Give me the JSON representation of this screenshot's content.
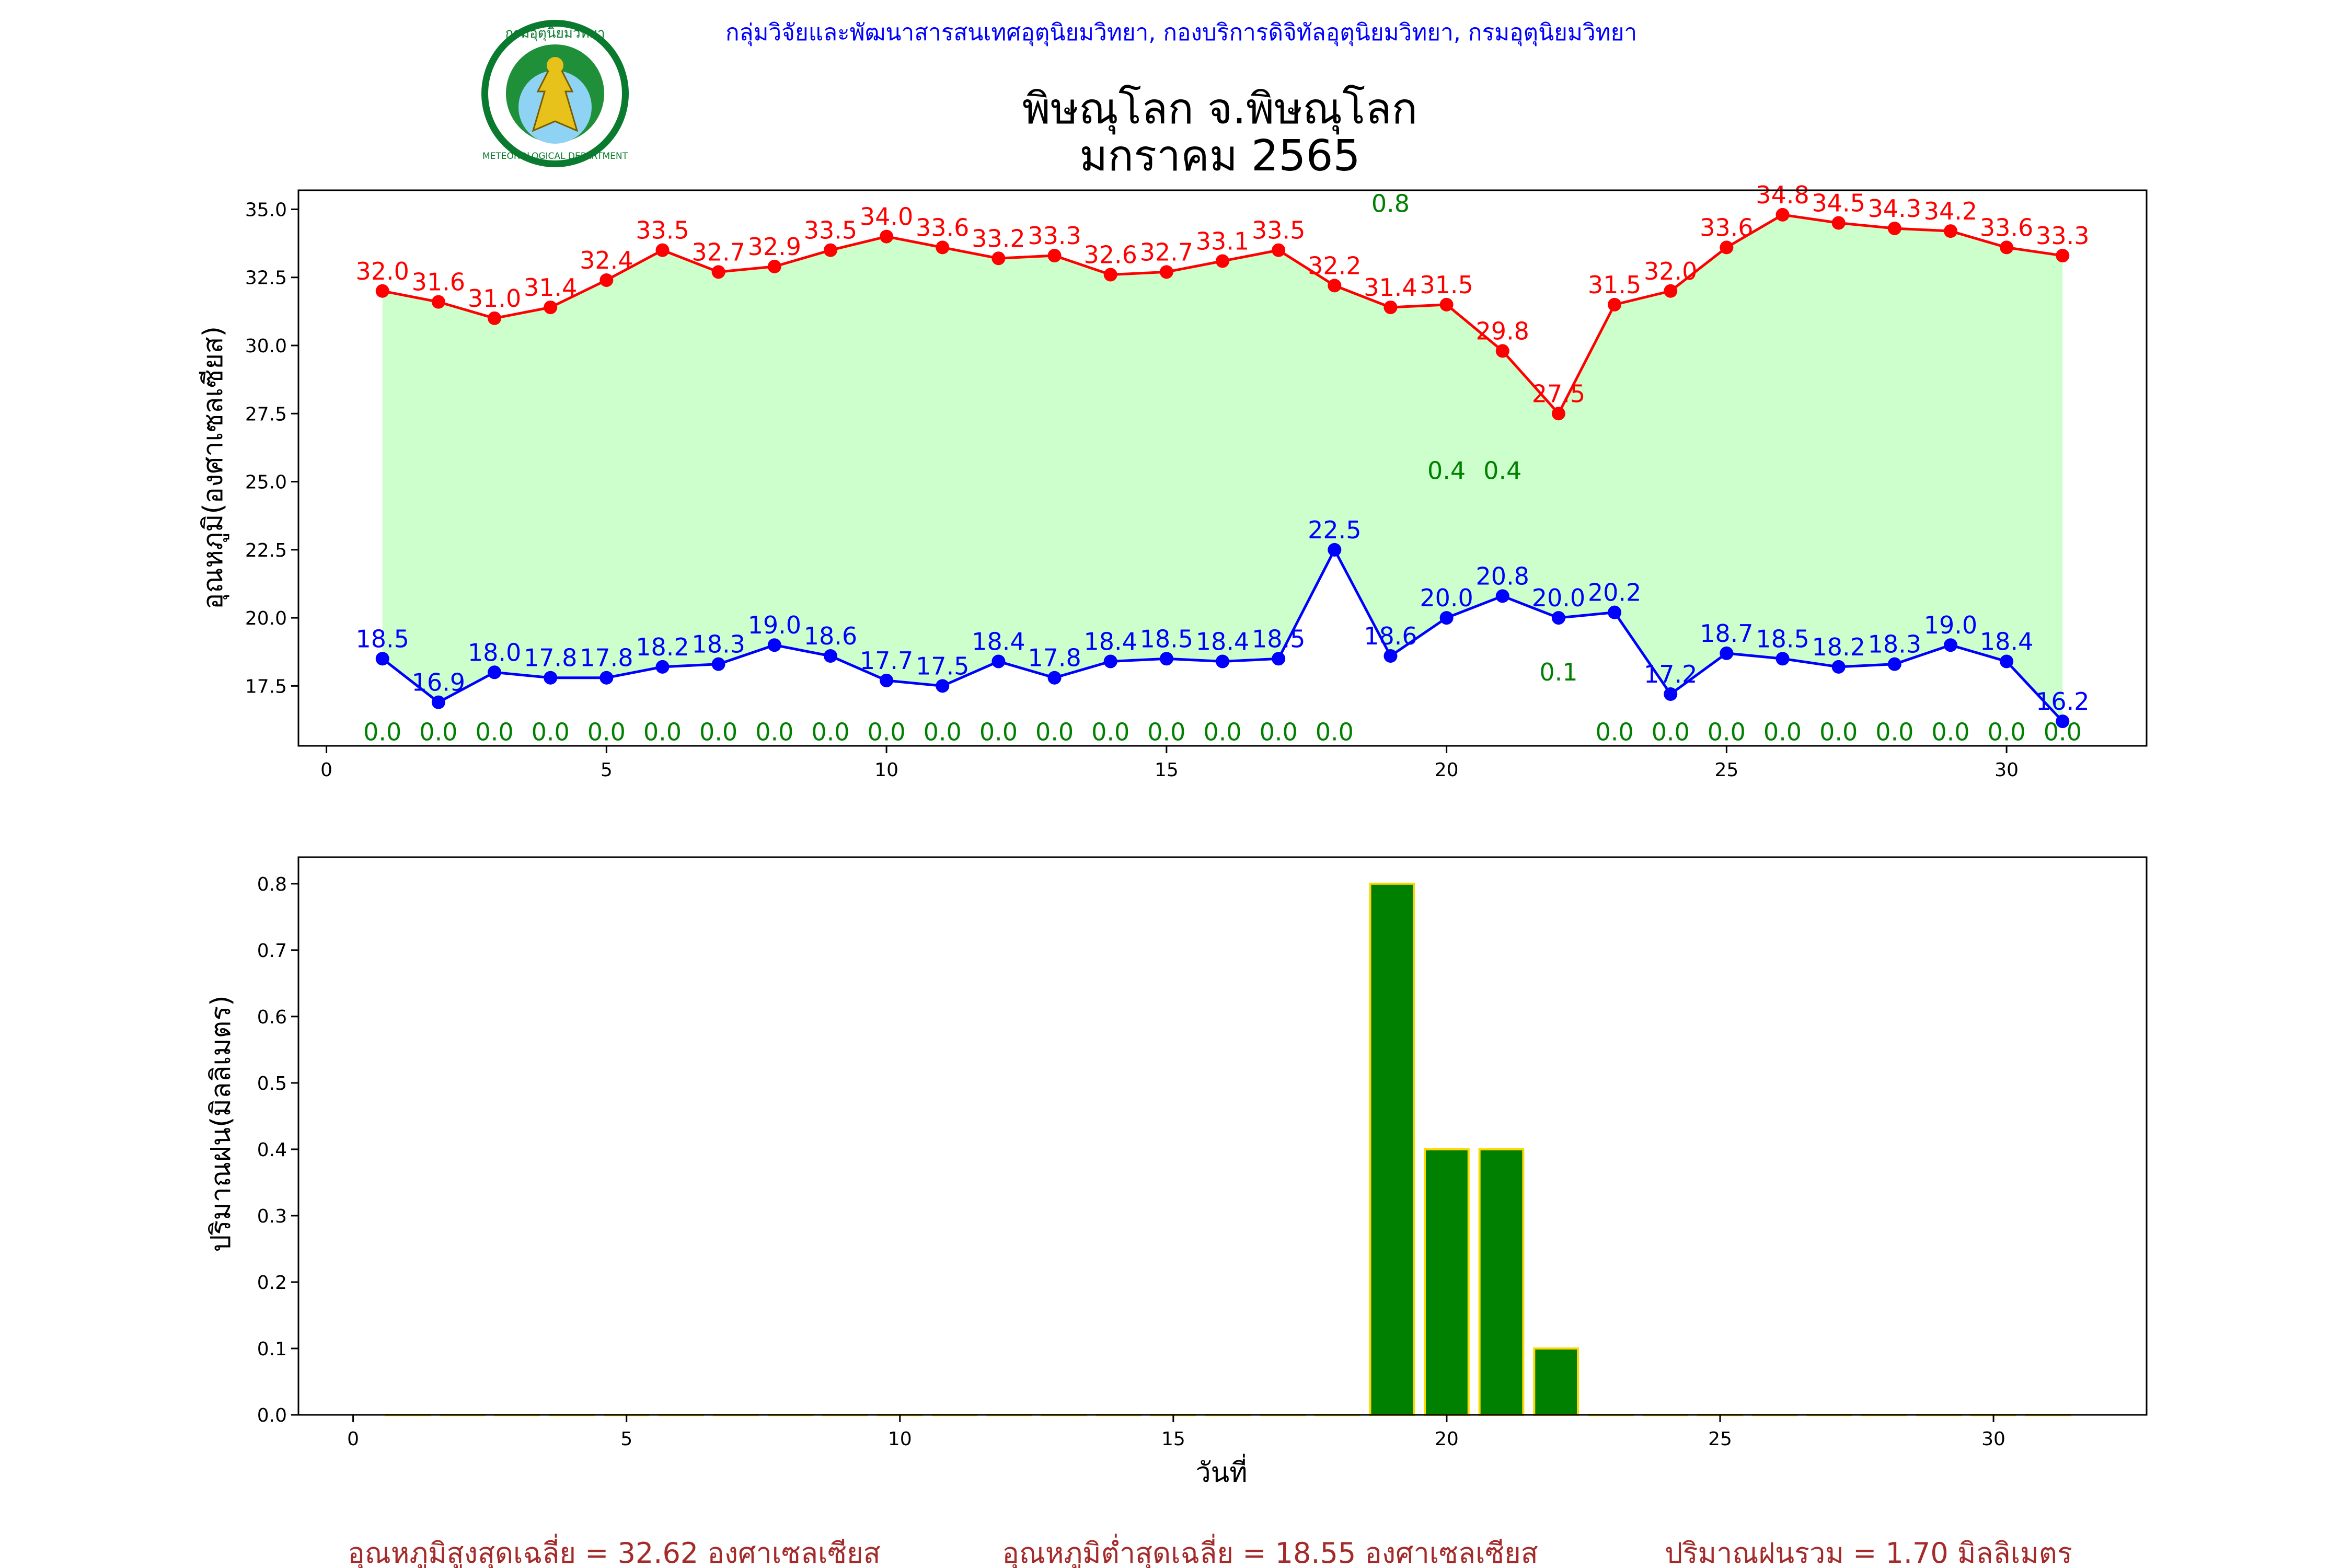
{
  "header": {
    "org_text": "กลุ่มวิจัยและพัฒนาสารสนเทศอุตุนิยมวิทยา, กองบริการดิจิทัลอุตุนิยมวิทยา, กรมอุตุนิยมวิทยา",
    "title_line1": "พิษณุโลก จ.พิษณุโลก",
    "title_line2": "มกราคม 2565",
    "logo_text_top": "กรมอุตุนิยมวิทยา",
    "logo_text_bottom": "METEOROLOGICAL DEPARTMENT"
  },
  "colors": {
    "header_text": "#0000ff",
    "max_line": "#ff0000",
    "min_line": "#0000ff",
    "rain_label": "#008000",
    "fill": "#ccffcc",
    "bar_fill": "#008000",
    "bar_edge": "#ffd700",
    "footer_text": "#a52a2a"
  },
  "chart_data": [
    {
      "type": "line",
      "xlabel": "",
      "ylabel": "อุณหภูมิ(องศาเซลเซียส)",
      "xlim": [
        -0.5,
        32.5
      ],
      "ylim": [
        15.3,
        35.7
      ],
      "xticks": [
        0,
        5,
        10,
        15,
        20,
        25,
        30
      ],
      "yticks": [
        17.5,
        20.0,
        22.5,
        25.0,
        27.5,
        30.0,
        32.5,
        35.0
      ],
      "x": [
        1,
        2,
        3,
        4,
        5,
        6,
        7,
        8,
        9,
        10,
        11,
        12,
        13,
        14,
        15,
        16,
        17,
        18,
        19,
        20,
        21,
        22,
        23,
        24,
        25,
        26,
        27,
        28,
        29,
        30,
        31
      ],
      "max_temp": [
        32.0,
        31.6,
        31.0,
        31.4,
        32.4,
        33.5,
        32.7,
        32.9,
        33.5,
        34.0,
        33.6,
        33.2,
        33.3,
        32.6,
        32.7,
        33.1,
        33.5,
        32.2,
        31.4,
        31.5,
        29.8,
        27.5,
        31.5,
        32.0,
        33.6,
        34.8,
        34.5,
        34.3,
        34.2,
        33.6,
        33.3
      ],
      "max_labels": [
        "32.0",
        "31.6",
        "31.0",
        "31.4",
        "32.4",
        "33.5",
        "32.7",
        "32.9",
        "33.5",
        "34.0",
        "33.6",
        "33.2",
        "33.3",
        "32.6",
        "32.7",
        "33.1",
        "33.5",
        "32.2",
        "31.4",
        "31.5",
        "29.8",
        "27.5",
        "31.5",
        "32.0",
        "33.6",
        "34.8",
        "34.5",
        "34.3",
        "34.2",
        "33.6",
        "33.3"
      ],
      "min_temp": [
        18.5,
        16.9,
        18.0,
        17.8,
        17.8,
        18.2,
        18.3,
        19.0,
        18.6,
        17.7,
        17.5,
        18.4,
        17.8,
        18.4,
        18.5,
        18.4,
        18.5,
        22.5,
        18.6,
        20.0,
        20.8,
        20.0,
        20.2,
        17.2,
        18.7,
        18.5,
        18.2,
        18.3,
        19.0,
        18.4,
        16.2
      ],
      "min_labels": [
        "18.5",
        "16.9",
        "18.0",
        "17.8",
        "17.8",
        "18.2",
        "18.3",
        "19.0",
        "18.6",
        "17.7",
        "17.5",
        "18.4",
        "17.8",
        "18.4",
        "18.5",
        "18.4",
        "18.5",
        "22.5",
        "18.6",
        "20.0",
        "20.8",
        "20.0",
        "20.2",
        "17.2",
        "18.7",
        "18.5",
        "18.2",
        "18.3",
        "19.0",
        "18.4",
        "16.2"
      ],
      "rain_labels": [
        {
          "x": 1,
          "y": 15.5,
          "text": "0.0"
        },
        {
          "x": 2,
          "y": 15.5,
          "text": "0.0"
        },
        {
          "x": 3,
          "y": 15.5,
          "text": "0.0"
        },
        {
          "x": 4,
          "y": 15.5,
          "text": "0.0"
        },
        {
          "x": 5,
          "y": 15.5,
          "text": "0.0"
        },
        {
          "x": 6,
          "y": 15.5,
          "text": "0.0"
        },
        {
          "x": 7,
          "y": 15.5,
          "text": "0.0"
        },
        {
          "x": 8,
          "y": 15.5,
          "text": "0.0"
        },
        {
          "x": 9,
          "y": 15.5,
          "text": "0.0"
        },
        {
          "x": 10,
          "y": 15.5,
          "text": "0.0"
        },
        {
          "x": 11,
          "y": 15.5,
          "text": "0.0"
        },
        {
          "x": 12,
          "y": 15.5,
          "text": "0.0"
        },
        {
          "x": 13,
          "y": 15.5,
          "text": "0.0"
        },
        {
          "x": 14,
          "y": 15.5,
          "text": "0.0"
        },
        {
          "x": 15,
          "y": 15.5,
          "text": "0.0"
        },
        {
          "x": 16,
          "y": 15.5,
          "text": "0.0"
        },
        {
          "x": 17,
          "y": 15.5,
          "text": "0.0"
        },
        {
          "x": 18,
          "y": 15.5,
          "text": "0.0"
        },
        {
          "x": 19,
          "y": 34.9,
          "text": "0.8"
        },
        {
          "x": 20,
          "y": 25.1,
          "text": "0.4"
        },
        {
          "x": 21,
          "y": 25.1,
          "text": "0.4"
        },
        {
          "x": 22,
          "y": 17.7,
          "text": "0.1"
        },
        {
          "x": 23,
          "y": 15.5,
          "text": "0.0"
        },
        {
          "x": 24,
          "y": 15.5,
          "text": "0.0"
        },
        {
          "x": 25,
          "y": 15.5,
          "text": "0.0"
        },
        {
          "x": 26,
          "y": 15.5,
          "text": "0.0"
        },
        {
          "x": 27,
          "y": 15.5,
          "text": "0.0"
        },
        {
          "x": 28,
          "y": 15.5,
          "text": "0.0"
        },
        {
          "x": 29,
          "y": 15.5,
          "text": "0.0"
        },
        {
          "x": 30,
          "y": 15.5,
          "text": "0.0"
        },
        {
          "x": 31,
          "y": 15.5,
          "text": "0.0"
        }
      ],
      "grid": false
    },
    {
      "type": "bar",
      "xlabel": "วันที่",
      "ylabel": "ปริมาณฝน(มิลลิเมตร)",
      "xlim": [
        -1,
        32.8
      ],
      "ylim": [
        0,
        0.84
      ],
      "xticks": [
        0,
        5,
        10,
        15,
        20,
        25,
        30
      ],
      "yticks": [
        0.0,
        0.1,
        0.2,
        0.3,
        0.4,
        0.5,
        0.6,
        0.7,
        0.8
      ],
      "x": [
        1,
        2,
        3,
        4,
        5,
        6,
        7,
        8,
        9,
        10,
        11,
        12,
        13,
        14,
        15,
        16,
        17,
        18,
        19,
        20,
        21,
        22,
        23,
        24,
        25,
        26,
        27,
        28,
        29,
        30,
        31
      ],
      "values": [
        0,
        0,
        0,
        0,
        0,
        0,
        0,
        0,
        0,
        0,
        0,
        0,
        0,
        0,
        0,
        0,
        0,
        0,
        0.8,
        0.4,
        0.4,
        0.1,
        0,
        0,
        0,
        0,
        0,
        0,
        0,
        0,
        0
      ],
      "grid": false
    }
  ],
  "footer": {
    "avg_max": "อุณหภูมิสูงสุดเฉลี่ย = 32.62 องศาเซลเซียส",
    "avg_min": "อุณหภูมิต่ำสุดเฉลี่ย = 18.55 องศาเซลเซียส",
    "total_rain": "ปริมาณฝนรวม = 1.70 มิลลิเมตร"
  }
}
